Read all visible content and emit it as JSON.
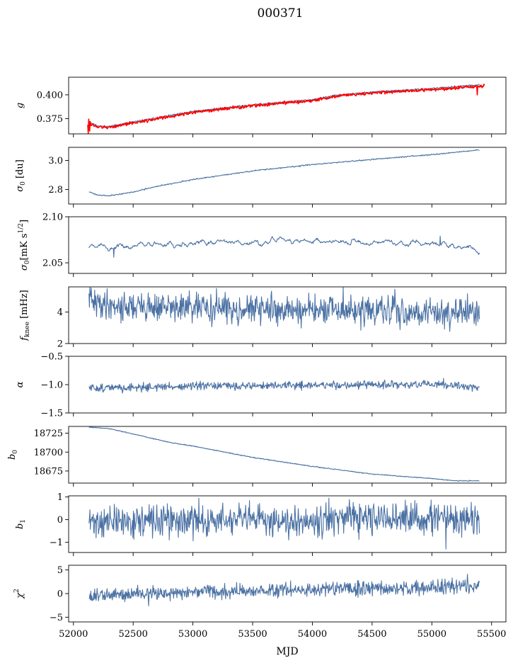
{
  "figure": {
    "title": "000371"
  },
  "chart_data": [
    {
      "type": "line",
      "ylabel": "g",
      "ylabel_sub": "",
      "ylabel_sup": "",
      "ylabel_tail": "",
      "ylim": [
        0.359,
        0.4185
      ],
      "yticks": [
        0.375,
        0.4
      ],
      "yticklabels": [
        "0.375",
        "0.400"
      ],
      "series": [
        {
          "name": "gain-fit",
          "color": "#4c72a4",
          "knots": [
            [
              52130,
              0.3715
            ],
            [
              52200,
              0.3675
            ],
            [
              52280,
              0.3665
            ],
            [
              52500,
              0.3715
            ],
            [
              53000,
              0.3825
            ],
            [
              53500,
              0.3895
            ],
            [
              54000,
              0.395
            ],
            [
              54200,
              0.3995
            ],
            [
              54500,
              0.403
            ],
            [
              55000,
              0.4065
            ],
            [
              55400,
              0.4105
            ]
          ],
          "noise": 0.0004,
          "seed": 11
        },
        {
          "name": "gain-measured",
          "color": "#ff0000",
          "knots": [
            [
              52120,
              0.37
            ],
            [
              52200,
              0.3665
            ],
            [
              52280,
              0.3655
            ],
            [
              52500,
              0.3705
            ],
            [
              53000,
              0.3815
            ],
            [
              53500,
              0.3885
            ],
            [
              54000,
              0.394
            ],
            [
              54200,
              0.3985
            ],
            [
              54500,
              0.402
            ],
            [
              55000,
              0.4055
            ],
            [
              55440,
              0.4095
            ]
          ],
          "noise": 0.0008,
          "seed": 12,
          "spikes": [
            [
              52125,
              0.3595
            ],
            [
              52130,
              0.3745
            ],
            [
              52135,
              0.362
            ],
            [
              52140,
              0.372
            ],
            [
              55380,
              0.4
            ],
            [
              55420,
              0.4075
            ]
          ]
        }
      ]
    },
    {
      "type": "line",
      "ylabel": "σ",
      "ylabel_sub": "0",
      "ylabel_sup": "",
      "ylabel_tail": " [du]",
      "ylim": [
        2.7,
        3.09
      ],
      "yticks": [
        2.8,
        3.0
      ],
      "yticklabels": [
        "2.8",
        "3.0"
      ],
      "series": [
        {
          "name": "sigma0-du",
          "color": "#4c72a4",
          "knots": [
            [
              52130,
              2.785
            ],
            [
              52200,
              2.762
            ],
            [
              52300,
              2.757
            ],
            [
              52500,
              2.782
            ],
            [
              52700,
              2.822
            ],
            [
              53000,
              2.868
            ],
            [
              53500,
              2.928
            ],
            [
              54000,
              2.971
            ],
            [
              54500,
              3.007
            ],
            [
              55000,
              3.04
            ],
            [
              55400,
              3.072
            ]
          ],
          "noise": 0.002,
          "seed": 21
        }
      ]
    },
    {
      "type": "line",
      "ylabel": "σ",
      "ylabel_sub": "0",
      "ylabel_sup": "",
      "ylabel_tail": "[mK s",
      "ylabel_tail_sup": "1/2",
      "ylabel_tail_end": "]",
      "ylim": [
        2.0385,
        2.1
      ],
      "yticks": [
        2.05,
        2.1
      ],
      "yticklabels": [
        "2.05",
        "2.10"
      ],
      "series": [
        {
          "name": "sigma0-mk",
          "color": "#4c72a4",
          "knots": [
            [
              52130,
              2.068
            ],
            [
              52300,
              2.067
            ],
            [
              52600,
              2.069
            ],
            [
              53000,
              2.072
            ],
            [
              53500,
              2.073
            ],
            [
              54000,
              2.074
            ],
            [
              54500,
              2.072
            ],
            [
              55000,
              2.071
            ],
            [
              55400,
              2.064
            ]
          ],
          "noise": 0.0035,
          "seed": 31,
          "smooth": 4,
          "spikes": [
            [
              52340,
              2.056
            ],
            [
              55070,
              2.079
            ],
            [
              55400,
              2.061
            ]
          ]
        }
      ]
    },
    {
      "type": "line",
      "ylabel": "f",
      "ylabel_sub": "knee",
      "ylabel_sup": "",
      "ylabel_tail": " [mHz]",
      "ylim": [
        2.0,
        5.6
      ],
      "yticks": [
        2,
        4
      ],
      "yticklabels": [
        "2",
        "4"
      ],
      "series": [
        {
          "name": "fknee",
          "color": "#4c72a4",
          "knots": [
            [
              52130,
              4.6
            ],
            [
              52500,
              4.35
            ],
            [
              53000,
              4.25
            ],
            [
              54000,
              4.1
            ],
            [
              55000,
              4.0
            ],
            [
              55400,
              3.9
            ]
          ],
          "noise": 0.45,
          "seed": 41,
          "spikes": [
            [
              52140,
              5.6
            ],
            [
              52400,
              3.3
            ],
            [
              53200,
              5.5
            ],
            [
              54260,
              5.6
            ],
            [
              54690,
              5.45
            ],
            [
              55400,
              3.55
            ]
          ]
        }
      ]
    },
    {
      "type": "line",
      "ylabel": "α",
      "ylabel_sub": "",
      "ylabel_sup": "",
      "ylabel_tail": "",
      "ylim": [
        -1.5,
        -0.5
      ],
      "yticks": [
        -1.5,
        -1.0,
        -0.5
      ],
      "yticklabels": [
        "−1.5",
        "−1.0",
        "−0.5"
      ],
      "series": [
        {
          "name": "alpha",
          "color": "#4c72a4",
          "knots": [
            [
              52130,
              -1.06
            ],
            [
              53000,
              -1.03
            ],
            [
              54000,
              -1.01
            ],
            [
              55000,
              -1.0
            ],
            [
              55400,
              -1.04
            ]
          ],
          "noise": 0.035,
          "seed": 51,
          "spikes": [
            [
              52410,
              -1.15
            ],
            [
              55100,
              -0.89
            ]
          ]
        }
      ]
    },
    {
      "type": "line",
      "ylabel": "b",
      "ylabel_sub": "0",
      "ylabel_sup": "",
      "ylabel_tail": "",
      "ylim": [
        18659,
        18734
      ],
      "yticks": [
        18675,
        18700,
        18725
      ],
      "yticklabels": [
        "18675",
        "18700",
        "18725"
      ],
      "series": [
        {
          "name": "b0",
          "color": "#4c72a4",
          "knots": [
            [
              52130,
              18733
            ],
            [
              52300,
              18731
            ],
            [
              52500,
              18724
            ],
            [
              52800,
              18713
            ],
            [
              53000,
              18708
            ],
            [
              53500,
              18693
            ],
            [
              54000,
              18681
            ],
            [
              54500,
              18671
            ],
            [
              55000,
              18665
            ],
            [
              55200,
              18662
            ],
            [
              55400,
              18662
            ]
          ],
          "noise": 0.3,
          "seed": 61
        }
      ]
    },
    {
      "type": "line",
      "ylabel": "b",
      "ylabel_sub": "1",
      "ylabel_sup": "",
      "ylabel_tail": "",
      "ylim": [
        -1.45,
        1.05
      ],
      "yticks": [
        -1,
        0,
        1
      ],
      "yticklabels": [
        "−1",
        "0",
        "1"
      ],
      "series": [
        {
          "name": "b1",
          "color": "#4c72a4",
          "knots": [
            [
              52130,
              -0.1
            ],
            [
              53000,
              -0.05
            ],
            [
              54000,
              0.0
            ],
            [
              55000,
              0.05
            ],
            [
              55400,
              0.0
            ]
          ],
          "noise": 0.35,
          "seed": 71,
          "spikes": [
            [
              55120,
              -1.3
            ],
            [
              54140,
              0.95
            ],
            [
              55400,
              -0.6
            ]
          ]
        }
      ]
    },
    {
      "type": "line",
      "ylabel": "χ",
      "ylabel_sub": "",
      "ylabel_sup": "2",
      "ylabel_tail": "",
      "ylim": [
        -6.0,
        6.0
      ],
      "yticks": [
        -5,
        0,
        5
      ],
      "yticklabels": [
        "−5",
        "0",
        "5"
      ],
      "series": [
        {
          "name": "chi2",
          "color": "#4c72a4",
          "knots": [
            [
              52130,
              -0.6
            ],
            [
              52500,
              0.0
            ],
            [
              53000,
              0.3
            ],
            [
              54000,
              0.9
            ],
            [
              55000,
              1.2
            ],
            [
              55400,
              1.7
            ]
          ],
          "noise": 0.75,
          "seed": 81,
          "spikes": [
            [
              52630,
              -2.6
            ],
            [
              55300,
              4.1
            ]
          ]
        }
      ]
    }
  ],
  "xaxis": {
    "label": "MJD",
    "xlim": [
      51960,
      55620
    ],
    "ticks": [
      52000,
      52500,
      53000,
      53500,
      54000,
      54500,
      55000,
      55500
    ],
    "ticklabels": [
      "52000",
      "52500",
      "53000",
      "53500",
      "54000",
      "54500",
      "55000",
      "55500"
    ]
  }
}
